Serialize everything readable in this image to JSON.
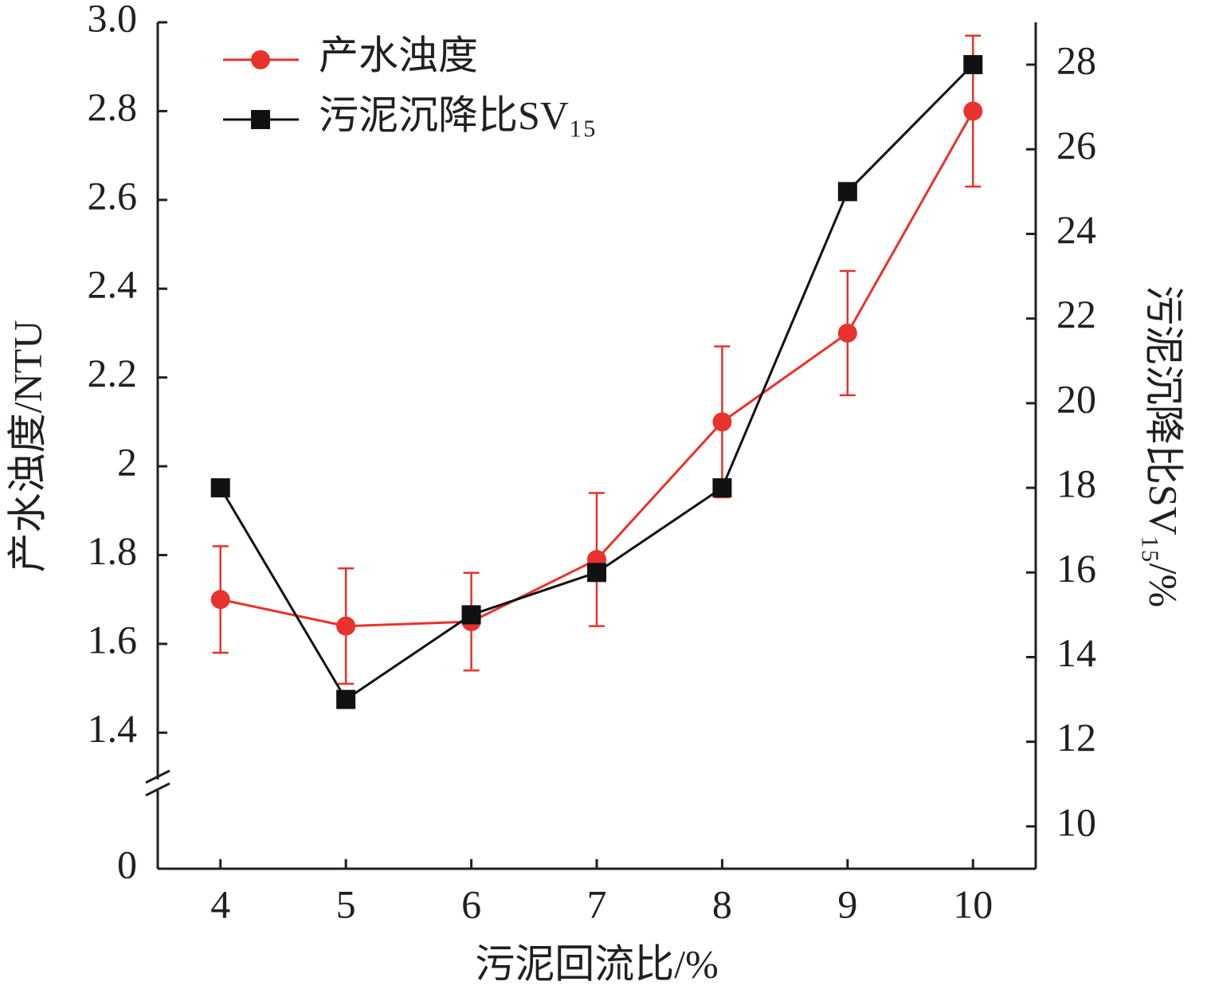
{
  "chart_data": {
    "type": "line",
    "x_label": "污泥回流比/%",
    "y_label": "产水浊度/NTU",
    "y2_label": "污泥沉降比SV₁₅/%",
    "x": [
      4,
      5,
      6,
      7,
      8,
      9,
      10
    ],
    "xlim": [
      3.5,
      10.5
    ],
    "xticks": [
      4,
      5,
      6,
      7,
      8,
      9,
      10
    ],
    "ylim": [
      0,
      3.0
    ],
    "ybreak": [
      0,
      1.3
    ],
    "yticks": [
      0,
      1.4,
      1.6,
      1.8,
      2.0,
      2.2,
      2.4,
      2.6,
      2.8,
      {
        "value": 3.0,
        "label": "3.0"
      }
    ],
    "y2lim": [
      9,
      29
    ],
    "y2ticks": [
      10,
      12,
      14,
      16,
      18,
      20,
      22,
      24,
      26,
      28
    ],
    "legend": "upper left",
    "series": [
      {
        "name": "产水浊度",
        "color": "#e8322d",
        "marker": "circle",
        "axis": "y",
        "values": [
          1.7,
          1.64,
          1.65,
          1.79,
          2.1,
          2.3,
          2.8
        ],
        "errors": [
          0.12,
          0.13,
          0.11,
          0.15,
          0.17,
          0.14,
          0.17
        ]
      },
      {
        "name": "污泥沉降比SV₁₅",
        "color": "#111111",
        "marker": "square",
        "axis": "y2",
        "values": [
          18,
          13,
          15,
          16,
          18,
          25,
          28
        ]
      }
    ]
  }
}
